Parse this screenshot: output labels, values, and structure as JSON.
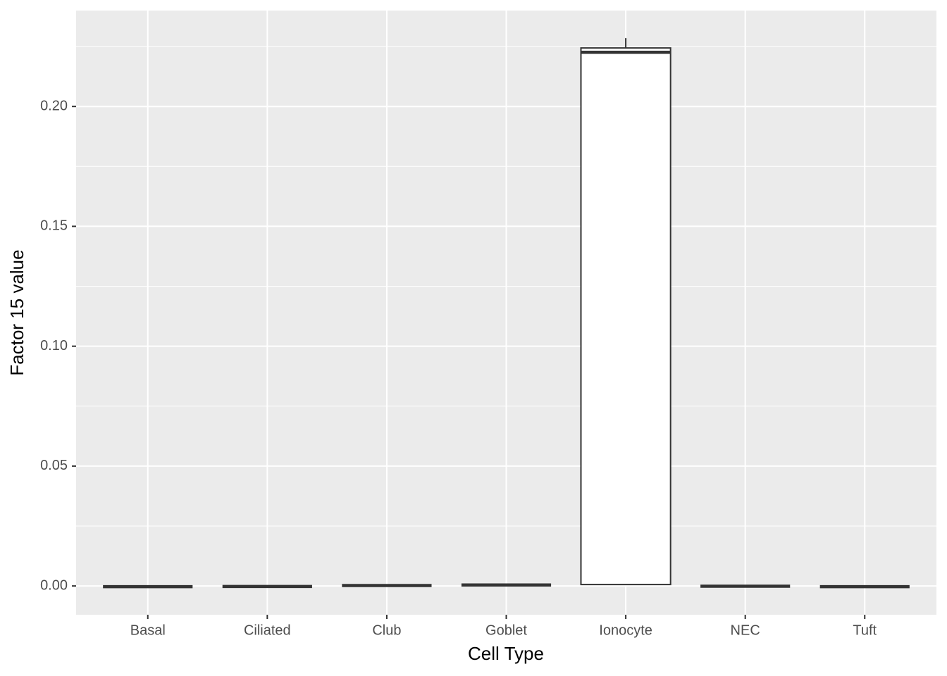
{
  "chart_data": {
    "type": "box",
    "x_label": "Cell Type",
    "y_label": "Factor 15 value",
    "categories": [
      "Basal",
      "Ciliated",
      "Club",
      "Goblet",
      "Ionocyte",
      "NEC",
      "Tuft"
    ],
    "values": [
      {
        "min": -0.0003,
        "q1": -0.0003,
        "median": -0.0003,
        "q3": -0.0003,
        "max": -0.0003
      },
      {
        "min": -0.0002,
        "q1": -0.0002,
        "median": -0.0002,
        "q3": -0.0002,
        "max": -0.0002
      },
      {
        "min": 0.0002,
        "q1": 0.0002,
        "median": 0.0002,
        "q3": 0.0002,
        "max": 0.0002
      },
      {
        "min": 0.0004,
        "q1": 0.0004,
        "median": 0.0004,
        "q3": 0.0004,
        "max": 0.0004
      },
      {
        "min": 0.0006,
        "q1": 0.0006,
        "median": 0.2226,
        "q3": 0.2244,
        "max": 0.2285
      },
      {
        "min": -0.0001,
        "q1": -0.0001,
        "median": -0.0001,
        "q3": -0.0001,
        "max": -0.0001
      },
      {
        "min": -0.0003,
        "q1": -0.0003,
        "median": -0.0003,
        "q3": -0.0003,
        "max": -0.0003
      }
    ],
    "color": "#ffffff",
    "line_color": "#333333",
    "ylim": [
      -0.012,
      0.24
    ],
    "yticks": [
      {
        "value": 0,
        "label": "0.00"
      },
      0.05,
      {
        "value": 0.1,
        "label": "0.10"
      },
      0.15,
      {
        "value": 0.2,
        "label": "0.20"
      }
    ],
    "grid": true
  }
}
